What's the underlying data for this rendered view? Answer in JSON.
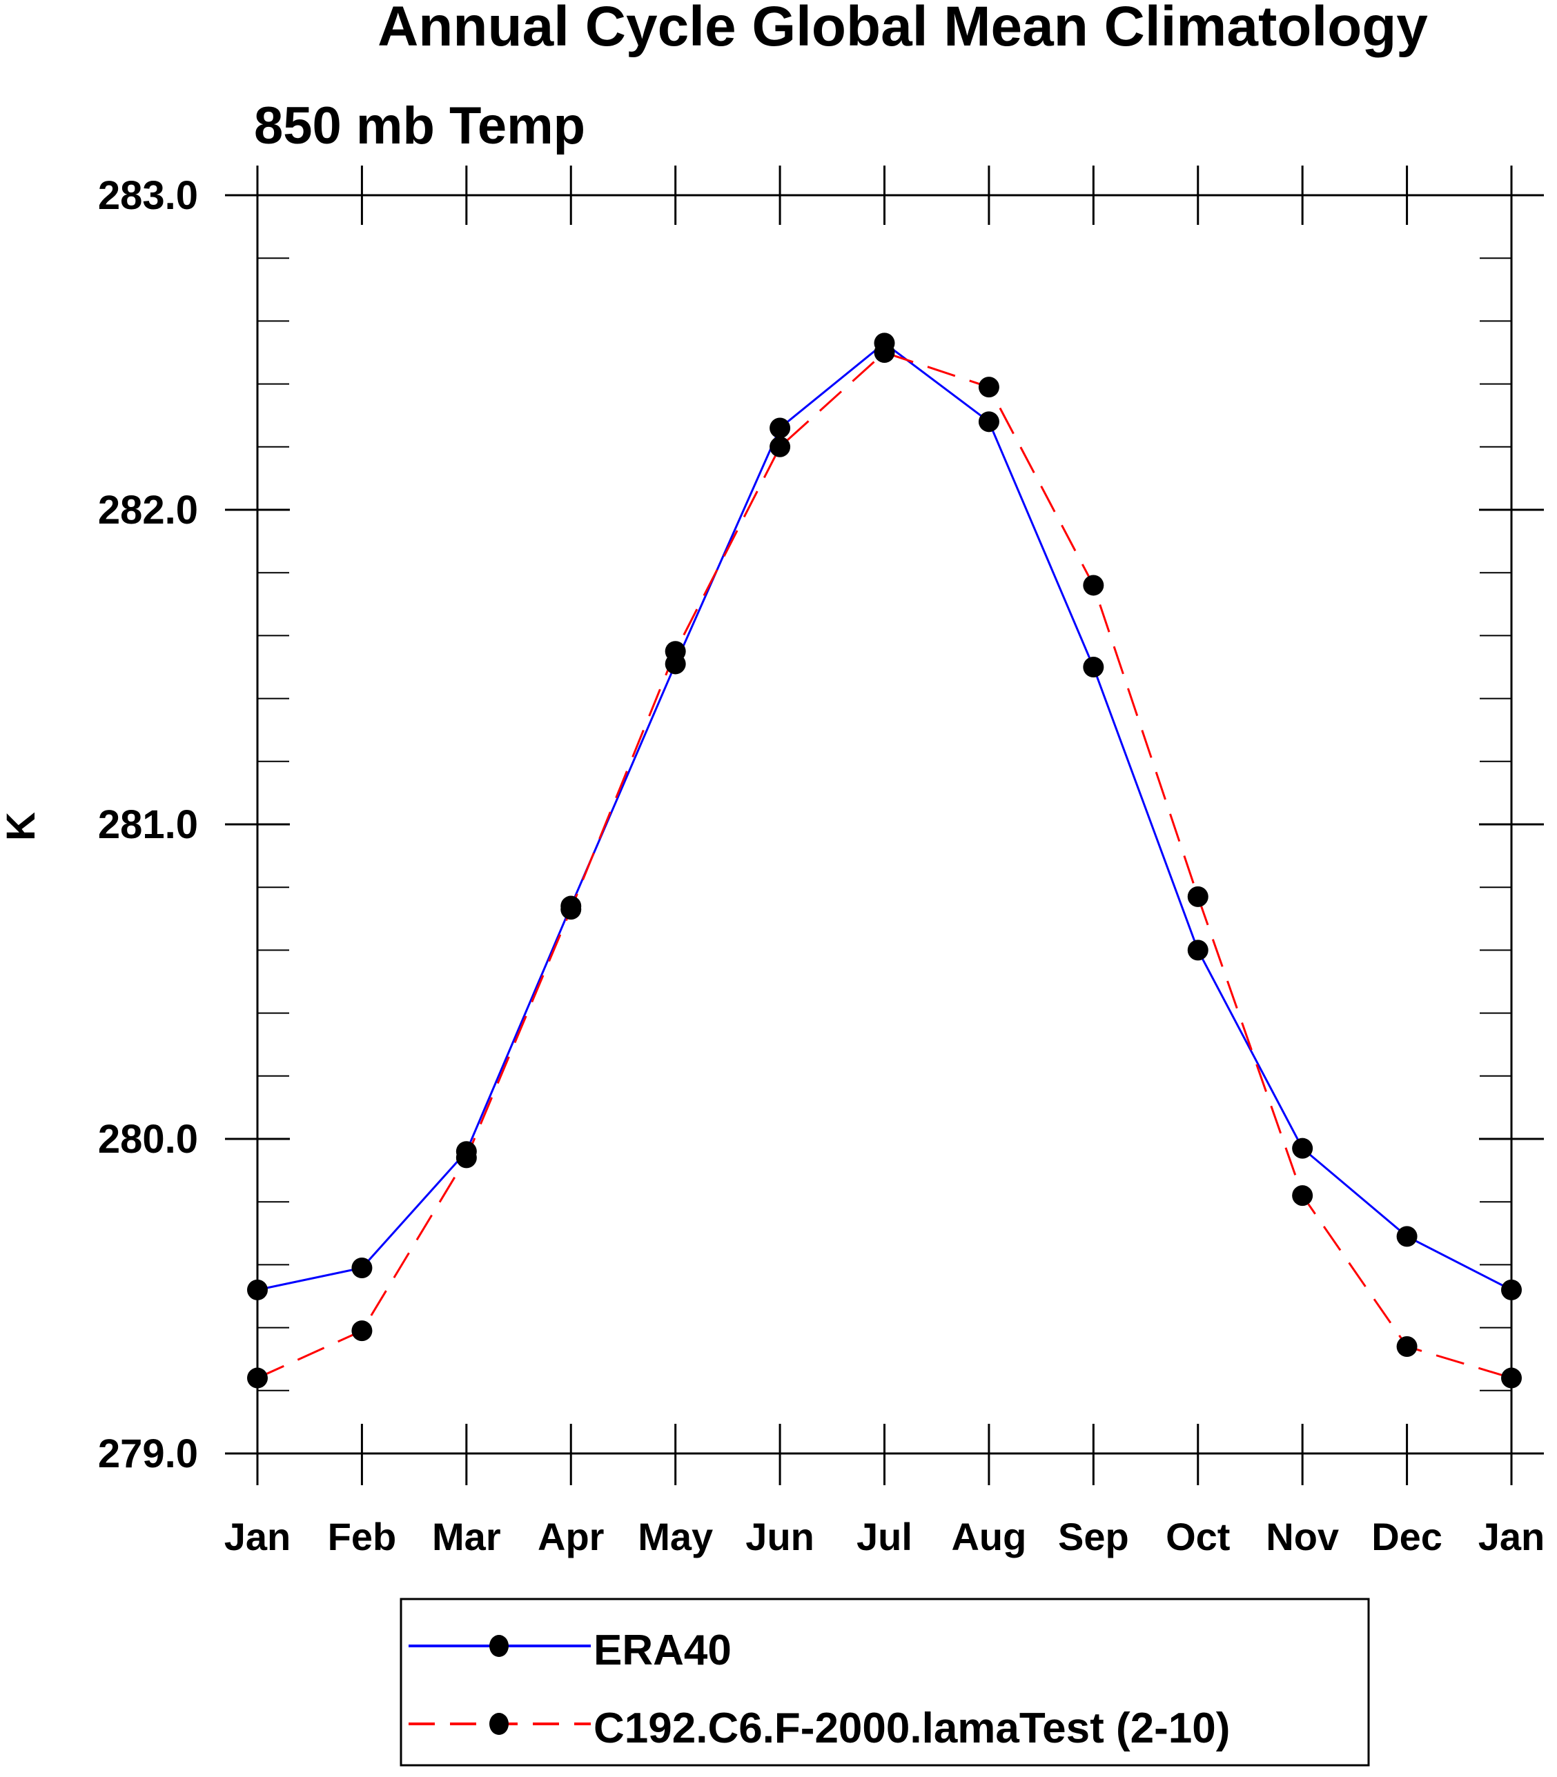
{
  "chart_data": {
    "type": "line",
    "title": "Annual Cycle Global Mean Climatology",
    "subtitle": "850 mb Temp",
    "xlabel": "",
    "ylabel": "K",
    "categories": [
      "Jan",
      "Feb",
      "Mar",
      "Apr",
      "May",
      "Jun",
      "Jul",
      "Aug",
      "Sep",
      "Oct",
      "Nov",
      "Dec",
      "Jan"
    ],
    "ylim": [
      279.0,
      283.0
    ],
    "yticks": [
      "279.0",
      "280.0",
      "281.0",
      "282.0",
      "283.0"
    ],
    "grid": false,
    "legend_position": "bottom",
    "series": [
      {
        "name": "ERA40",
        "color": "#0000ff",
        "dash": "solid",
        "values": [
          279.52,
          279.59,
          279.96,
          280.74,
          281.51,
          282.26,
          282.53,
          282.28,
          281.5,
          280.6,
          279.97,
          279.69,
          279.52
        ]
      },
      {
        "name": "C192.C6.F-2000.lamaTest (2-10)",
        "color": "#ff0000",
        "dash": "dashed",
        "values": [
          279.24,
          279.39,
          279.94,
          280.73,
          281.55,
          282.2,
          282.5,
          282.39,
          281.76,
          280.77,
          279.82,
          279.34,
          279.24
        ]
      }
    ]
  }
}
